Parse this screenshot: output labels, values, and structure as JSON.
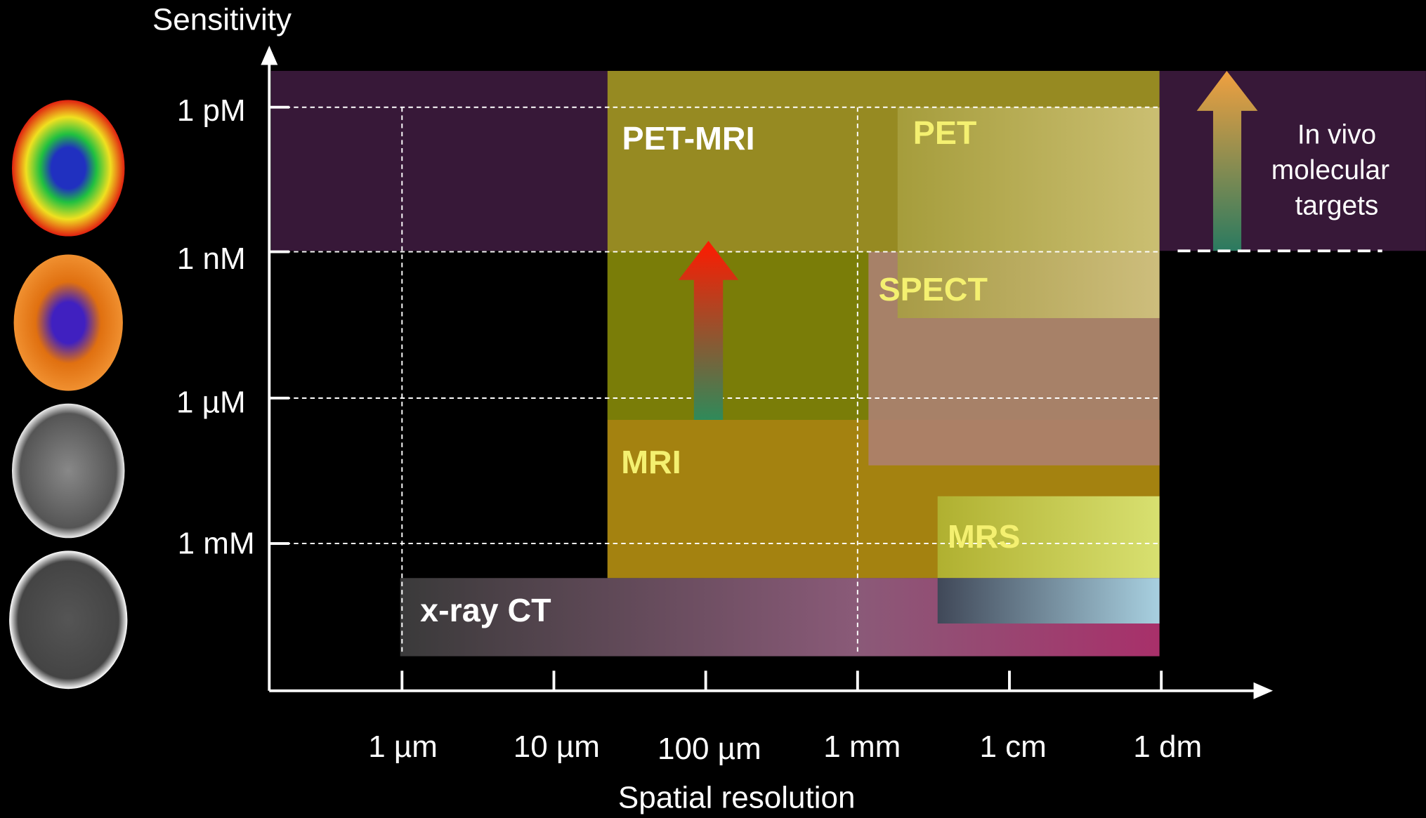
{
  "y_axis": {
    "title": "Sensitivity",
    "ticks": [
      "1 pM",
      "1 nM",
      "1 µM",
      "1 mM"
    ]
  },
  "x_axis": {
    "title": "Spatial resolution",
    "ticks": [
      "1 µm",
      "10 µm",
      "100 µm",
      "1 mm",
      "1 cm",
      "1 dm"
    ]
  },
  "regions": [
    {
      "label": "PET-MRI"
    },
    {
      "label": "PET"
    },
    {
      "label": "SPECT"
    },
    {
      "label": "MRI"
    },
    {
      "label": "MRS"
    },
    {
      "label": "x-ray CT"
    }
  ],
  "annotation": {
    "lines": [
      "In vivo",
      "molecular",
      "targets"
    ]
  }
}
